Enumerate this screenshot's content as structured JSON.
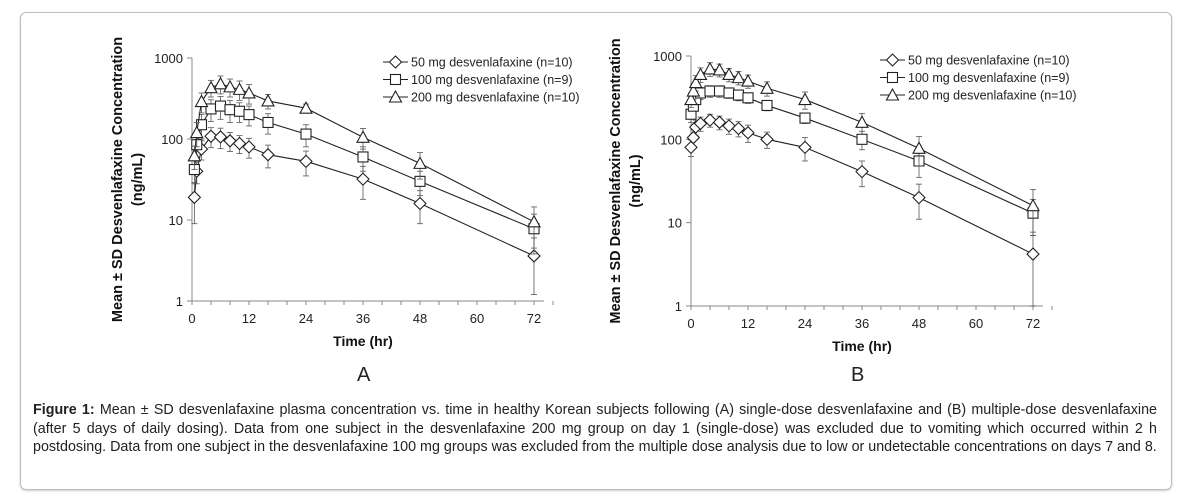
{
  "caption": {
    "label": "Figure 1:",
    "text": "Mean ± SD desvenlafaxine plasma concentration vs. time in healthy Korean subjects following (A) single-dose desvenlafaxine and (B) multiple-dose desvenlafaxine (after 5 days of daily dosing). Data from one subject in the desvenlafaxine 200 mg group on day 1 (single-dose) was excluded due to vomiting which occurred within 2 h postdosing. Data from one subject in the desvenlafaxine 100 mg groups was excluded from the multiple dose analysis due to low or undetectable concentrations on days 7 and 8."
  },
  "chart_data": [
    {
      "panel": "A",
      "type": "line",
      "xlabel": "Time (hr)",
      "ylabel": "Mean ± SD Desvenlafaxine Concentration (ng/mL)",
      "xlim": [
        0,
        72
      ],
      "ylim": [
        1,
        1000
      ],
      "yscale": "log",
      "xticks": [
        0,
        12,
        24,
        36,
        48,
        60,
        72
      ],
      "yticks": [
        1,
        10,
        100,
        1000
      ],
      "grid": false,
      "legend": "top-right",
      "x": [
        0.5,
        1,
        2,
        4,
        6,
        8,
        10,
        12,
        16,
        24,
        36,
        48,
        72
      ],
      "series": [
        {
          "name": "50 mg desvenlafaxine (n=10)",
          "marker": "diamond",
          "values": [
            19,
            40,
            75,
            108,
            106,
            95,
            88,
            80,
            64,
            53,
            32,
            16,
            3.6
          ],
          "sd": [
            10,
            12,
            20,
            30,
            30,
            25,
            22,
            22,
            20,
            18,
            14,
            7,
            2.4
          ]
        },
        {
          "name": "100 mg desvenlafaxine (n=9)",
          "marker": "square",
          "values": [
            42,
            85,
            150,
            235,
            255,
            230,
            220,
            200,
            160,
            115,
            60,
            30,
            7.8
          ],
          "sd": [
            14,
            30,
            50,
            70,
            80,
            70,
            60,
            55,
            45,
            35,
            20,
            10,
            4
          ]
        },
        {
          "name": "200 mg desvenlafaxine (n=10)",
          "marker": "triangle",
          "values": [
            62,
            120,
            290,
            430,
            480,
            440,
            410,
            370,
            295,
            240,
            105,
            50,
            9.5
          ],
          "sd": [
            20,
            40,
            80,
            100,
            120,
            110,
            110,
            100,
            60,
            30,
            30,
            18,
            5
          ]
        }
      ]
    },
    {
      "panel": "B",
      "type": "line",
      "xlabel": "Time (hr)",
      "ylabel": "Mean ± SD Desvenlafaxine Concentration (ng/mL)",
      "xlim": [
        0,
        72
      ],
      "ylim": [
        1,
        1000
      ],
      "yscale": "log",
      "xticks": [
        0,
        12,
        24,
        36,
        48,
        60,
        72
      ],
      "yticks": [
        1,
        10,
        100,
        1000
      ],
      "grid": false,
      "legend": "top-right",
      "x": [
        0,
        0.5,
        1,
        2,
        4,
        6,
        8,
        10,
        12,
        16,
        24,
        36,
        48,
        72
      ],
      "series": [
        {
          "name": "50 mg desvenlafaxine (n=10)",
          "marker": "diamond",
          "values": [
            80,
            105,
            140,
            155,
            170,
            160,
            145,
            135,
            120,
            100,
            80,
            41,
            20,
            4.2
          ],
          "sd": [
            18,
            25,
            30,
            30,
            30,
            30,
            30,
            28,
            28,
            22,
            25,
            14,
            9,
            3.5
          ]
        },
        {
          "name": "100 mg desvenlafaxine (n=9)",
          "marker": "square",
          "values": [
            200,
            250,
            300,
            360,
            380,
            380,
            360,
            340,
            315,
            255,
            180,
            100,
            55,
            13
          ],
          "sd": [
            40,
            50,
            60,
            60,
            60,
            60,
            50,
            50,
            45,
            35,
            25,
            25,
            20,
            6
          ]
        },
        {
          "name": "200 mg desvenlafaxine (n=10)",
          "marker": "triangle",
          "values": [
            300,
            380,
            480,
            600,
            700,
            680,
            600,
            550,
            500,
            410,
            300,
            160,
            78,
            16
          ],
          "sd": [
            60,
            80,
            100,
            120,
            130,
            120,
            110,
            100,
            90,
            80,
            70,
            45,
            30,
            9
          ]
        }
      ]
    }
  ]
}
